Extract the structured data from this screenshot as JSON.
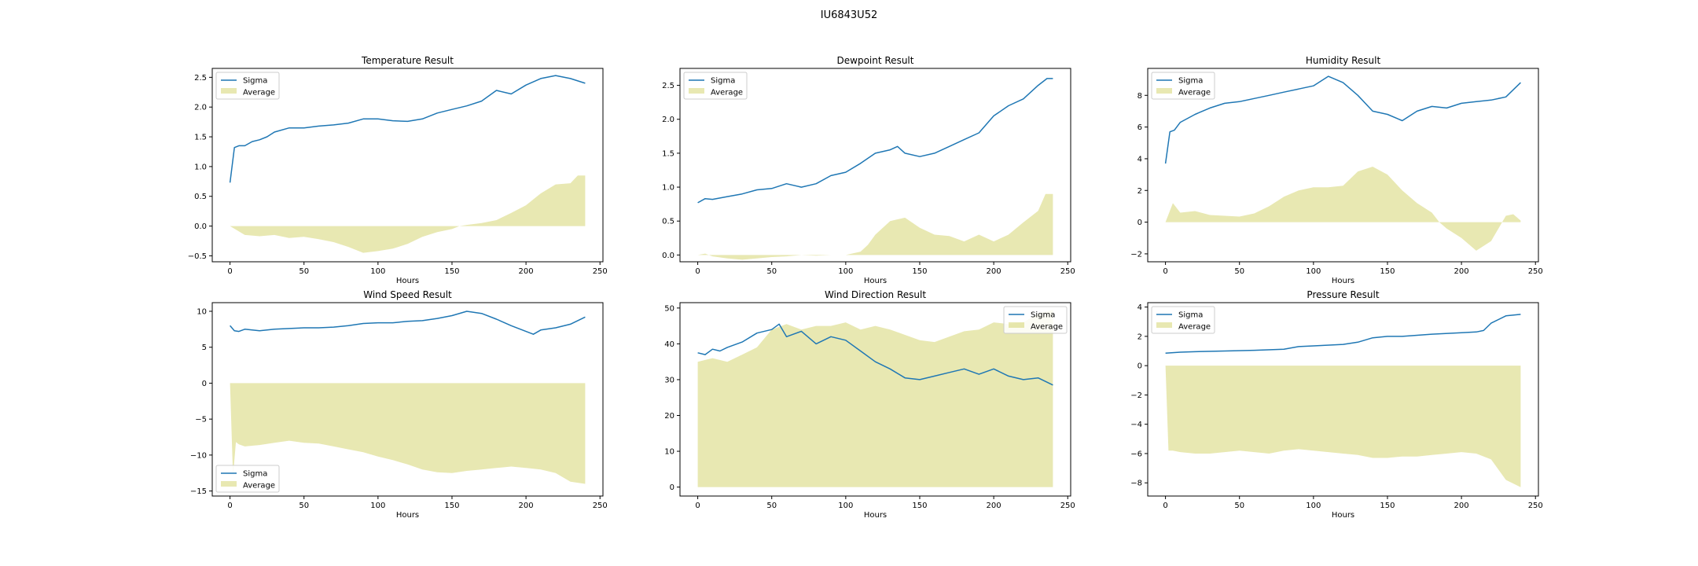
{
  "figure": {
    "suptitle": "IU6843U52"
  },
  "colors": {
    "sigma": "#1f77b4",
    "average": "#bcbd22",
    "average_alpha": 0.35,
    "axis": "#000000"
  },
  "chart_data": [
    {
      "type": "line+area",
      "title": "Temperature Result",
      "xlabel": "Hours",
      "ylabel": "",
      "xlim": [
        -12,
        252
      ],
      "ylim": [
        -0.6,
        2.65
      ],
      "xticks": [
        0,
        50,
        100,
        150,
        200,
        250
      ],
      "yticks": [
        -0.5,
        0.0,
        0.5,
        1.0,
        1.5,
        2.0,
        2.5
      ],
      "ytick_labels": [
        "−0.5",
        "0.0",
        "0.5",
        "1.0",
        "1.5",
        "2.0",
        "2.5"
      ],
      "legend": {
        "placement": "upper-left",
        "entries": [
          "Sigma",
          "Average"
        ]
      },
      "series": [
        {
          "name": "Sigma",
          "kind": "line",
          "x": [
            0,
            3,
            6,
            10,
            15,
            20,
            25,
            30,
            40,
            50,
            60,
            70,
            80,
            90,
            100,
            110,
            120,
            130,
            140,
            150,
            160,
            170,
            180,
            190,
            200,
            210,
            220,
            230,
            240
          ],
          "y": [
            0.73,
            1.32,
            1.35,
            1.35,
            1.42,
            1.45,
            1.5,
            1.58,
            1.65,
            1.65,
            1.68,
            1.7,
            1.73,
            1.8,
            1.8,
            1.77,
            1.76,
            1.8,
            1.9,
            1.96,
            2.02,
            2.1,
            2.28,
            2.22,
            2.37,
            2.48,
            2.53,
            2.48,
            2.4
          ]
        },
        {
          "name": "Average",
          "kind": "area",
          "x": [
            0,
            10,
            20,
            30,
            40,
            50,
            60,
            70,
            80,
            90,
            100,
            110,
            120,
            130,
            140,
            150,
            155,
            160,
            170,
            180,
            190,
            200,
            210,
            220,
            230,
            235,
            240
          ],
          "y": [
            0.0,
            -0.15,
            -0.17,
            -0.15,
            -0.2,
            -0.18,
            -0.22,
            -0.27,
            -0.35,
            -0.45,
            -0.42,
            -0.38,
            -0.3,
            -0.18,
            -0.1,
            -0.05,
            0.0,
            0.02,
            0.05,
            0.1,
            0.22,
            0.35,
            0.55,
            0.7,
            0.72,
            0.85,
            0.85
          ]
        }
      ]
    },
    {
      "type": "line+area",
      "title": "Dewpoint Result",
      "xlabel": "Hours",
      "ylabel": "",
      "xlim": [
        -12,
        252
      ],
      "ylim": [
        -0.1,
        2.75
      ],
      "xticks": [
        0,
        50,
        100,
        150,
        200,
        250
      ],
      "yticks": [
        0.0,
        0.5,
        1.0,
        1.5,
        2.0,
        2.5
      ],
      "ytick_labels": [
        "0.0",
        "0.5",
        "1.0",
        "1.5",
        "2.0",
        "2.5"
      ],
      "legend": {
        "placement": "upper-left",
        "entries": [
          "Sigma",
          "Average"
        ]
      },
      "series": [
        {
          "name": "Sigma",
          "kind": "line",
          "x": [
            0,
            5,
            10,
            20,
            30,
            40,
            50,
            60,
            70,
            80,
            90,
            100,
            110,
            120,
            130,
            135,
            140,
            150,
            160,
            170,
            180,
            190,
            200,
            210,
            220,
            230,
            236,
            240
          ],
          "y": [
            0.77,
            0.83,
            0.82,
            0.86,
            0.9,
            0.96,
            0.98,
            1.05,
            1.0,
            1.05,
            1.17,
            1.22,
            1.35,
            1.5,
            1.55,
            1.6,
            1.5,
            1.45,
            1.5,
            1.6,
            1.7,
            1.8,
            2.05,
            2.2,
            2.3,
            2.5,
            2.6,
            2.6
          ]
        },
        {
          "name": "Average",
          "kind": "area",
          "x": [
            0,
            5,
            10,
            20,
            30,
            40,
            50,
            60,
            70,
            80,
            90,
            100,
            110,
            115,
            120,
            130,
            140,
            150,
            160,
            170,
            180,
            190,
            200,
            210,
            220,
            230,
            235,
            240
          ],
          "y": [
            0.0,
            0.02,
            -0.02,
            -0.05,
            -0.07,
            -0.05,
            -0.03,
            -0.02,
            0.0,
            -0.01,
            0.0,
            0.0,
            0.05,
            0.15,
            0.3,
            0.5,
            0.55,
            0.4,
            0.3,
            0.28,
            0.2,
            0.3,
            0.2,
            0.3,
            0.48,
            0.65,
            0.9,
            0.9
          ]
        }
      ]
    },
    {
      "type": "line+area",
      "title": "Humidity Result",
      "xlabel": "Hours",
      "ylabel": "",
      "xlim": [
        -12,
        252
      ],
      "ylim": [
        -2.5,
        9.7
      ],
      "xticks": [
        0,
        50,
        100,
        150,
        200,
        250
      ],
      "yticks": [
        -2,
        0,
        2,
        4,
        6,
        8
      ],
      "ytick_labels": [
        "−2",
        "0",
        "2",
        "4",
        "6",
        "8"
      ],
      "legend": {
        "placement": "upper-left",
        "entries": [
          "Sigma",
          "Average"
        ]
      },
      "series": [
        {
          "name": "Sigma",
          "kind": "line",
          "x": [
            0,
            3,
            6,
            10,
            20,
            30,
            40,
            50,
            60,
            70,
            80,
            90,
            100,
            110,
            120,
            130,
            140,
            150,
            160,
            170,
            180,
            190,
            200,
            210,
            220,
            230,
            240
          ],
          "y": [
            3.7,
            5.7,
            5.8,
            6.3,
            6.8,
            7.2,
            7.5,
            7.6,
            7.8,
            8.0,
            8.2,
            8.4,
            8.6,
            9.2,
            8.8,
            8.0,
            7.0,
            6.8,
            6.4,
            7.0,
            7.3,
            7.2,
            7.5,
            7.6,
            7.7,
            7.9,
            8.8
          ]
        },
        {
          "name": "Average",
          "kind": "area",
          "x": [
            0,
            5,
            10,
            20,
            30,
            40,
            50,
            60,
            70,
            80,
            90,
            100,
            110,
            120,
            130,
            140,
            150,
            160,
            170,
            180,
            185,
            190,
            200,
            210,
            220,
            230,
            235,
            240
          ],
          "y": [
            0.0,
            1.2,
            0.6,
            0.7,
            0.45,
            0.4,
            0.35,
            0.55,
            1.0,
            1.6,
            2.0,
            2.2,
            2.2,
            2.3,
            3.2,
            3.5,
            3.0,
            2.0,
            1.2,
            0.6,
            0.0,
            -0.4,
            -1.0,
            -1.8,
            -1.2,
            0.4,
            0.5,
            0.1
          ]
        }
      ]
    },
    {
      "type": "line+area",
      "title": "Wind Speed Result",
      "xlabel": "Hours",
      "ylabel": "",
      "xlim": [
        -12,
        252
      ],
      "ylim": [
        -15.7,
        11.2
      ],
      "xticks": [
        0,
        50,
        100,
        150,
        200,
        250
      ],
      "yticks": [
        -15,
        -10,
        -5,
        0,
        5,
        10
      ],
      "ytick_labels": [
        "−15",
        "−10",
        "−5",
        "0",
        "5",
        "10"
      ],
      "legend": {
        "placement": "lower-left",
        "entries": [
          "Sigma",
          "Average"
        ]
      },
      "series": [
        {
          "name": "Sigma",
          "kind": "line",
          "x": [
            0,
            3,
            6,
            10,
            20,
            30,
            40,
            50,
            60,
            70,
            80,
            90,
            100,
            110,
            120,
            130,
            140,
            150,
            160,
            170,
            180,
            190,
            200,
            205,
            210,
            220,
            230,
            240
          ],
          "y": [
            8.0,
            7.3,
            7.2,
            7.5,
            7.3,
            7.5,
            7.6,
            7.7,
            7.7,
            7.8,
            8.0,
            8.3,
            8.4,
            8.4,
            8.6,
            8.7,
            9.0,
            9.4,
            10.0,
            9.7,
            8.9,
            8.0,
            7.2,
            6.8,
            7.4,
            7.7,
            8.2,
            9.2
          ]
        },
        {
          "name": "Average",
          "kind": "area",
          "x": [
            0,
            2,
            4,
            6,
            10,
            20,
            30,
            40,
            50,
            60,
            70,
            80,
            90,
            100,
            110,
            120,
            130,
            140,
            150,
            160,
            170,
            180,
            190,
            200,
            210,
            220,
            230,
            240
          ],
          "y": [
            0.0,
            -13.0,
            -8.2,
            -8.5,
            -8.8,
            -8.6,
            -8.3,
            -8.0,
            -8.3,
            -8.4,
            -8.8,
            -9.2,
            -9.6,
            -10.2,
            -10.7,
            -11.3,
            -12.0,
            -12.4,
            -12.5,
            -12.2,
            -12.0,
            -11.8,
            -11.6,
            -11.8,
            -12.0,
            -12.5,
            -13.7,
            -14.0
          ]
        }
      ]
    },
    {
      "type": "line+area",
      "title": "Wind Direction Result",
      "xlabel": "Hours",
      "ylabel": "",
      "xlim": [
        -12,
        252
      ],
      "ylim": [
        -2.5,
        51.5
      ],
      "xticks": [
        0,
        50,
        100,
        150,
        200,
        250
      ],
      "yticks": [
        0,
        10,
        20,
        30,
        40,
        50
      ],
      "ytick_labels": [
        "0",
        "10",
        "20",
        "30",
        "40",
        "50"
      ],
      "legend": {
        "placement": "upper-right",
        "entries": [
          "Sigma",
          "Average"
        ]
      },
      "series": [
        {
          "name": "Sigma",
          "kind": "line",
          "x": [
            0,
            5,
            10,
            15,
            20,
            30,
            40,
            50,
            55,
            60,
            70,
            80,
            90,
            100,
            110,
            120,
            130,
            140,
            150,
            160,
            170,
            180,
            190,
            200,
            210,
            220,
            230,
            240
          ],
          "y": [
            37.5,
            37.0,
            38.5,
            38.0,
            39.0,
            40.5,
            43.0,
            44.0,
            45.5,
            42.0,
            43.5,
            40.0,
            42.0,
            41.0,
            38.0,
            35.0,
            33.0,
            30.5,
            30.0,
            31.0,
            32.0,
            33.0,
            31.5,
            33.0,
            31.0,
            30.0,
            30.5,
            28.5
          ]
        },
        {
          "name": "Average",
          "kind": "area",
          "x": [
            0,
            5,
            10,
            20,
            30,
            40,
            50,
            60,
            70,
            80,
            90,
            100,
            110,
            120,
            130,
            140,
            150,
            160,
            170,
            180,
            190,
            200,
            210,
            220,
            230,
            240
          ],
          "y": [
            35.0,
            35.5,
            36.0,
            35.0,
            37.0,
            39.0,
            44.0,
            45.5,
            44.0,
            45.0,
            45.0,
            46.0,
            44.0,
            45.0,
            44.0,
            42.5,
            41.0,
            40.5,
            42.0,
            43.5,
            44.0,
            46.0,
            45.5,
            46.0,
            48.5,
            49.5
          ]
        }
      ]
    },
    {
      "type": "line+area",
      "title": "Pressure Result",
      "xlabel": "Hours",
      "ylabel": "",
      "xlim": [
        -12,
        252
      ],
      "ylim": [
        -8.9,
        4.3
      ],
      "xticks": [
        0,
        50,
        100,
        150,
        200,
        250
      ],
      "yticks": [
        -8,
        -6,
        -4,
        -2,
        0,
        2,
        4
      ],
      "ytick_labels": [
        "−8",
        "−6",
        "−4",
        "−2",
        "0",
        "2",
        "4"
      ],
      "legend": {
        "placement": "upper-left",
        "entries": [
          "Sigma",
          "Average"
        ]
      },
      "series": [
        {
          "name": "Sigma",
          "kind": "line",
          "x": [
            0,
            10,
            20,
            40,
            60,
            80,
            90,
            100,
            120,
            130,
            140,
            150,
            160,
            180,
            200,
            210,
            215,
            220,
            230,
            240
          ],
          "y": [
            0.85,
            0.92,
            0.95,
            1.0,
            1.05,
            1.12,
            1.3,
            1.35,
            1.45,
            1.6,
            1.9,
            2.0,
            2.0,
            2.15,
            2.25,
            2.3,
            2.4,
            2.9,
            3.4,
            3.5
          ]
        },
        {
          "name": "Average",
          "kind": "area",
          "x": [
            0,
            2,
            5,
            10,
            20,
            30,
            40,
            50,
            60,
            70,
            80,
            90,
            100,
            110,
            120,
            130,
            140,
            150,
            160,
            170,
            180,
            190,
            200,
            210,
            220,
            230,
            240
          ],
          "y": [
            0.0,
            -5.8,
            -5.8,
            -5.9,
            -6.0,
            -6.0,
            -5.9,
            -5.8,
            -5.9,
            -6.0,
            -5.8,
            -5.7,
            -5.8,
            -5.9,
            -6.0,
            -6.1,
            -6.3,
            -6.3,
            -6.2,
            -6.2,
            -6.1,
            -6.0,
            -5.9,
            -6.0,
            -6.4,
            -7.8,
            -8.3
          ]
        }
      ]
    }
  ]
}
